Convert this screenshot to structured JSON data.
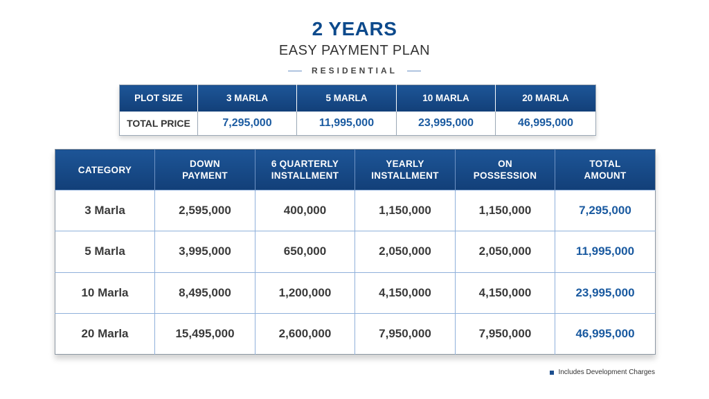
{
  "header": {
    "title": "2 YEARS",
    "subtitle": "EASY PAYMENT PLAN",
    "tag": "RESIDENTIAL"
  },
  "price_table": {
    "row_labels": [
      "PLOT SIZE",
      "TOTAL PRICE"
    ],
    "sizes": [
      "3 MARLA",
      "5 MARLA",
      "10 MARLA",
      "20 MARLA"
    ],
    "prices": [
      "7,295,000",
      "11,995,000",
      "23,995,000",
      "46,995,000"
    ]
  },
  "plan_table": {
    "headers": [
      [
        "CATEGORY",
        ""
      ],
      [
        "DOWN",
        "PAYMENT"
      ],
      [
        "6 QUARTERLY",
        "INSTALLMENT"
      ],
      [
        "YEARLY",
        "INSTALLMENT"
      ],
      [
        "ON",
        "POSSESSION"
      ],
      [
        "TOTAL",
        "AMOUNT"
      ]
    ],
    "rows": [
      [
        "3 Marla",
        "2,595,000",
        "400,000",
        "1,150,000",
        "1,150,000",
        "7,295,000"
      ],
      [
        "5 Marla",
        "3,995,000",
        "650,000",
        "2,050,000",
        "2,050,000",
        "11,995,000"
      ],
      [
        "10 Marla",
        "8,495,000",
        "1,200,000",
        "4,150,000",
        "4,150,000",
        "23,995,000"
      ],
      [
        "20 Marla",
        "15,495,000",
        "2,600,000",
        "7,950,000",
        "7,950,000",
        "46,995,000"
      ]
    ]
  },
  "footnote": "Includes Development Charges",
  "colors": {
    "brand_blue": "#0d4a8c",
    "header_blue": "#1d5597",
    "value_blue": "#1a5aa0"
  }
}
